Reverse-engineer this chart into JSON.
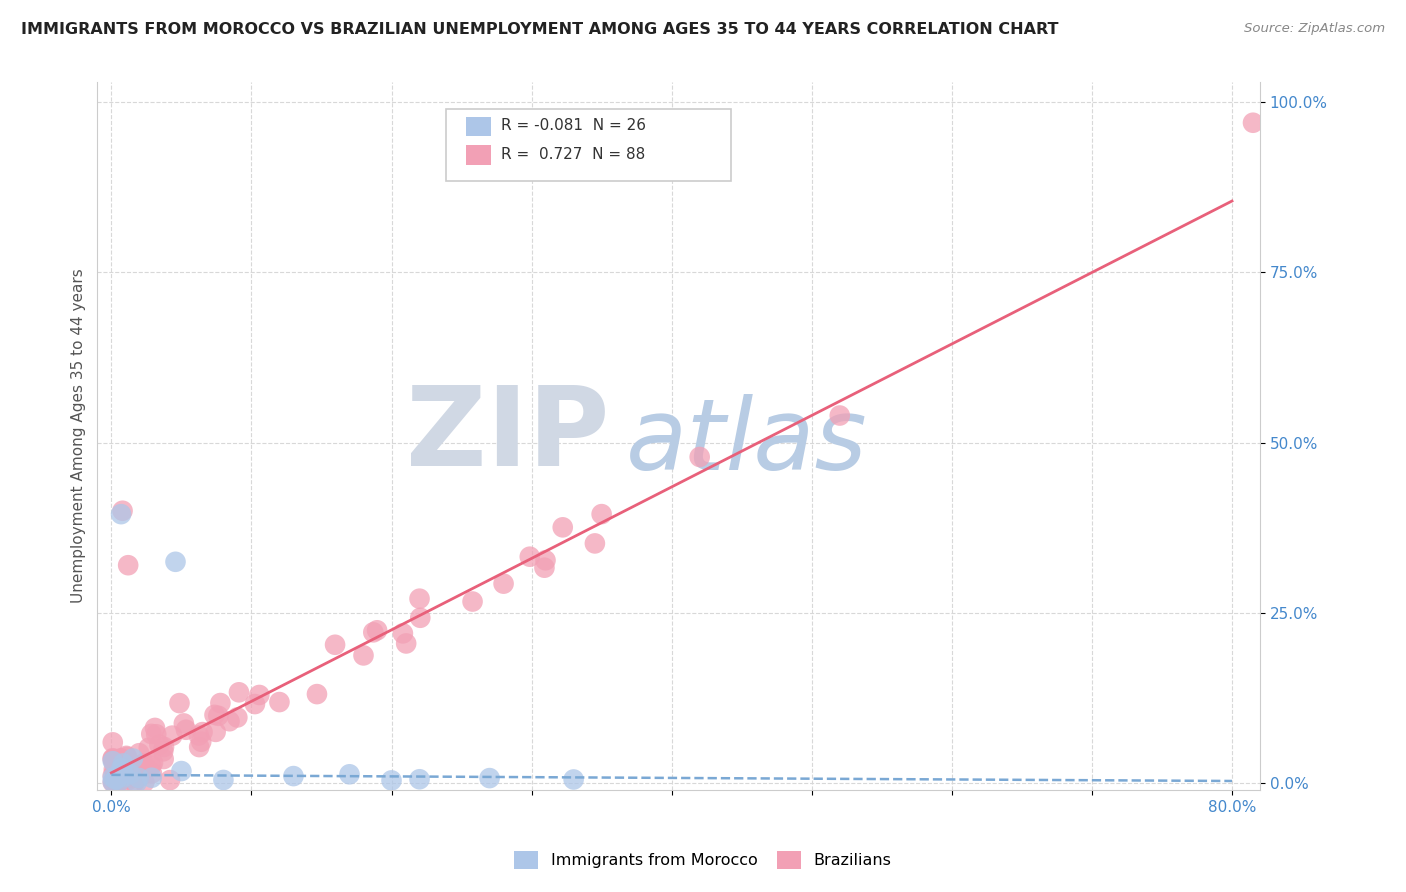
{
  "title": "IMMIGRANTS FROM MOROCCO VS BRAZILIAN UNEMPLOYMENT AMONG AGES 35 TO 44 YEARS CORRELATION CHART",
  "source": "Source: ZipAtlas.com",
  "ylabel": "Unemployment Among Ages 35 to 44 years",
  "xlim": [
    -0.01,
    0.82
  ],
  "ylim": [
    -0.01,
    1.03
  ],
  "xtick_positions": [
    0.0,
    0.1,
    0.2,
    0.3,
    0.4,
    0.5,
    0.6,
    0.7,
    0.8
  ],
  "xticklabels": [
    "0.0%",
    "",
    "",
    "",
    "",
    "",
    "",
    "",
    "80.0%"
  ],
  "ytick_positions": [
    0.0,
    0.25,
    0.5,
    0.75,
    1.0
  ],
  "yticklabels": [
    "0.0%",
    "25.0%",
    "50.0%",
    "75.0%",
    "100.0%"
  ],
  "morocco_R": -0.081,
  "morocco_N": 26,
  "brazil_R": 0.727,
  "brazil_N": 88,
  "morocco_color": "#adc6e8",
  "brazil_color": "#f2a0b5",
  "morocco_line_color": "#7aa8d4",
  "brazil_line_color": "#e8607a",
  "watermark_ZIP": "ZIP",
  "watermark_atlas": "atlas",
  "watermark_ZIP_color": "#d0d8e4",
  "watermark_atlas_color": "#b8cce4",
  "background_color": "#ffffff",
  "grid_color": "#d8d8d8",
  "title_color": "#222222",
  "source_color": "#888888",
  "tick_color": "#4488cc",
  "ylabel_color": "#555555",
  "legend_border_color": "#cccccc",
  "brazil_line_x0": 0.0,
  "brazil_line_y0": 0.015,
  "brazil_line_x1": 0.8,
  "brazil_line_y1": 0.855,
  "morocco_line_x0": 0.0,
  "morocco_line_y0": 0.012,
  "morocco_line_x1": 0.8,
  "morocco_line_y1": 0.003
}
